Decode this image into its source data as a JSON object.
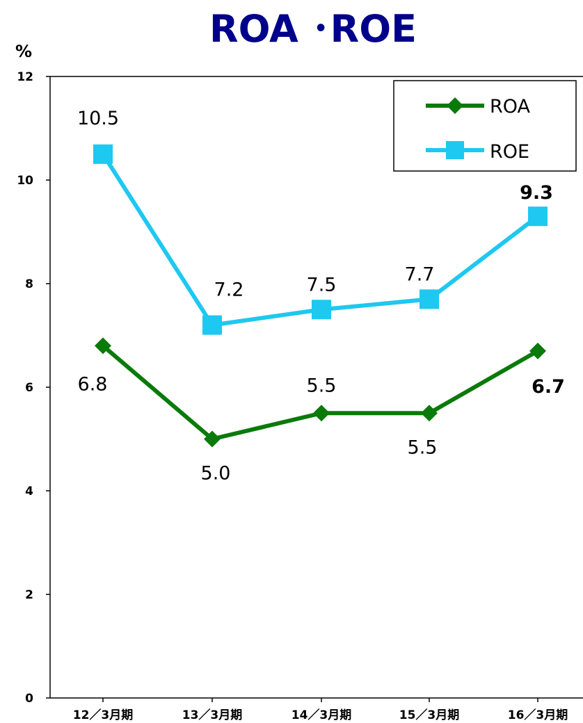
{
  "chart_data": {
    "type": "line",
    "title": "ROA ･ROE",
    "ylabel": "%",
    "categories": [
      "12／3月期",
      "13／3月期",
      "14／3月期",
      "15／3月期",
      "16／3月期"
    ],
    "ylim": [
      0,
      12
    ],
    "yticks": [
      "0",
      "2",
      "4",
      "6",
      "8",
      "10",
      "12"
    ],
    "grid": false,
    "legend_position": "top-right",
    "series": [
      {
        "name": "ROA",
        "values": [
          6.8,
          5.0,
          5.5,
          5.5,
          6.7
        ],
        "labels": [
          "6.8",
          "5.0",
          "5.5",
          "5.5",
          "6.7"
        ],
        "color": "#0a7a0a",
        "marker": "diamond"
      },
      {
        "name": "ROE",
        "values": [
          10.5,
          7.2,
          7.5,
          7.7,
          9.3
        ],
        "labels": [
          "10.5",
          "7.2",
          "7.5",
          "7.7",
          "9.3"
        ],
        "color": "#1ec8f0",
        "marker": "square"
      }
    ]
  }
}
